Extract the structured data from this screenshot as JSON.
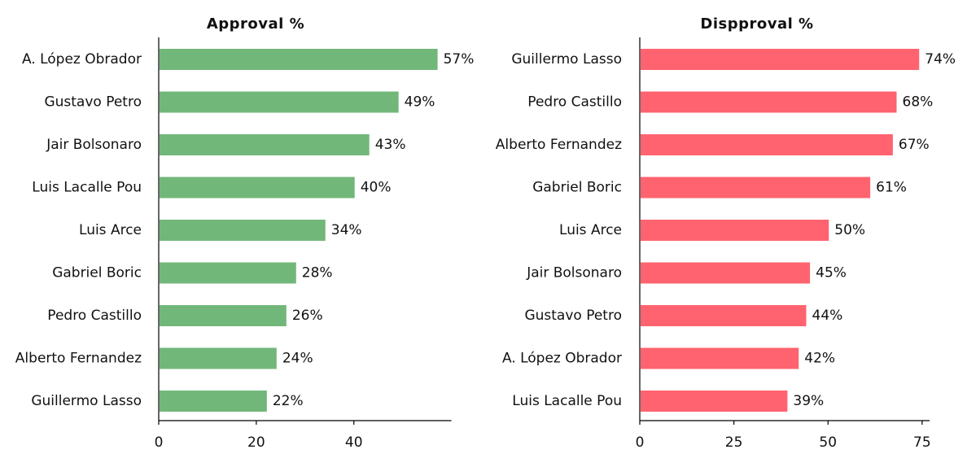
{
  "chart_data": [
    {
      "type": "bar",
      "orientation": "horizontal",
      "title": "Approval %",
      "categories": [
        "A. López Obrador",
        "Gustavo Petro",
        "Jair Bolsonaro",
        "Luis Lacalle Pou",
        "Luis Arce",
        "Gabriel Boric",
        "Pedro Castillo",
        "Alberto Fernandez",
        "Guillermo Lasso"
      ],
      "values": [
        57,
        49,
        43,
        40,
        34,
        28,
        26,
        24,
        22
      ],
      "value_labels": [
        "57%",
        "49%",
        "43%",
        "40%",
        "34%",
        "28%",
        "26%",
        "24%",
        "22%"
      ],
      "xticks": [
        0,
        20,
        40
      ],
      "tick_labels": [
        "0",
        "20",
        "40"
      ],
      "xlim": [
        0,
        60
      ],
      "grid": false,
      "color": "#72b77a"
    },
    {
      "type": "bar",
      "orientation": "horizontal",
      "title": "Dispproval %",
      "categories": [
        "Guillermo Lasso",
        "Pedro Castillo",
        "Alberto Fernandez",
        "Gabriel Boric",
        "Luis Arce",
        "Jair Bolsonaro",
        "Gustavo Petro",
        "A. López Obrador",
        "Luis Lacalle Pou"
      ],
      "values": [
        74,
        68,
        67,
        61,
        50,
        45,
        44,
        42,
        39
      ],
      "value_labels": [
        "74%",
        "68%",
        "67%",
        "61%",
        "50%",
        "45%",
        "44%",
        "42%",
        "39%"
      ],
      "xticks": [
        0,
        25,
        50,
        75
      ],
      "tick_labels": [
        "0",
        "25",
        "50",
        "75"
      ],
      "xlim": [
        0,
        77
      ],
      "grid": false,
      "color": "#ff636f"
    }
  ]
}
